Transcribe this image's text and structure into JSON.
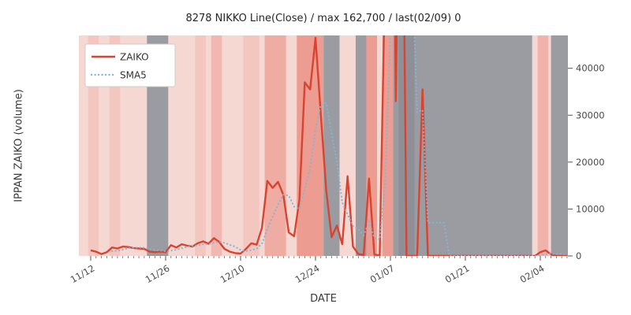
{
  "chart_data": {
    "type": "line",
    "title": "8278 NIKKO Line(Close) / max 162,700 / last(02/09) 0",
    "xlabel": "DATE",
    "ylabel": "IPPAN ZAIKO (volume)",
    "x_tick_labels": [
      "11/12",
      "11/26",
      "12/10",
      "12/24",
      "01/07",
      "01/21",
      "02/04"
    ],
    "x_tick_days": [
      0,
      14,
      28,
      42,
      56,
      70,
      84
    ],
    "y_ticks": [
      0,
      10000,
      20000,
      30000,
      40000
    ],
    "y_tick_labels": [
      "0",
      "10000",
      "20000",
      "30000",
      "40000"
    ],
    "ylim": [
      0,
      47000
    ],
    "grid": false,
    "legend_position": "upper-left",
    "sma_window": 5,
    "legend": [
      {
        "label": "ZAIKO",
        "color": "#d9432f",
        "style": "solid"
      },
      {
        "label": "SMA5",
        "color": "#85b5d4",
        "style": "dotted"
      }
    ],
    "dates": [
      "11/12",
      "11/13",
      "11/14",
      "11/15",
      "11/16",
      "11/17",
      "11/18",
      "11/19",
      "11/20",
      "11/21",
      "11/22",
      "11/23",
      "11/24",
      "11/25",
      "11/26",
      "11/27",
      "11/28",
      "11/29",
      "11/30",
      "12/01",
      "12/02",
      "12/03",
      "12/04",
      "12/05",
      "12/06",
      "12/07",
      "12/08",
      "12/09",
      "12/10",
      "12/11",
      "12/12",
      "12/13",
      "12/14",
      "12/15",
      "12/16",
      "12/17",
      "12/18",
      "12/19",
      "12/20",
      "12/21",
      "12/22",
      "12/23",
      "12/24",
      "12/25",
      "12/26",
      "12/27",
      "12/28",
      "12/29",
      "12/30",
      "12/31",
      "01/01",
      "01/02",
      "01/03",
      "01/04",
      "01/05",
      "01/06",
      "01/07",
      "01/08",
      "01/09",
      "01/10",
      "01/11",
      "01/12",
      "01/13",
      "01/14",
      "01/15",
      "01/16",
      "01/17",
      "01/18",
      "01/19",
      "01/20",
      "01/21",
      "01/22",
      "01/23",
      "01/24",
      "01/25",
      "01/26",
      "01/27",
      "01/28",
      "01/29",
      "01/30",
      "01/31",
      "02/01",
      "02/02",
      "02/03",
      "02/04",
      "02/05",
      "02/06",
      "02/07",
      "02/08",
      "02/09"
    ],
    "zaiko": [
      1200,
      900,
      400,
      800,
      1800,
      1600,
      2000,
      1900,
      1700,
      1600,
      1500,
      900,
      800,
      900,
      800,
      2300,
      1800,
      2500,
      2200,
      2000,
      2700,
      3100,
      2600,
      3800,
      3000,
      1500,
      900,
      600,
      500,
      1500,
      2700,
      2400,
      6000,
      16000,
      14500,
      15800,
      13000,
      5000,
      4200,
      12000,
      37000,
      35500,
      46500,
      30000,
      14000,
      4000,
      6500,
      2500,
      17000,
      2000,
      400,
      200,
      16500,
      300,
      100,
      60000,
      162700,
      33000,
      120000,
      0,
      0,
      0,
      35500,
      0,
      0,
      0,
      0,
      0,
      0,
      0,
      0,
      0,
      0,
      0,
      0,
      0,
      0,
      0,
      0,
      0,
      0,
      0,
      0,
      0,
      800,
      1200,
      300,
      0,
      0,
      0
    ],
    "background_bands": [
      {
        "from": -2.5,
        "to": 10.5,
        "color": "#f6d8d3"
      },
      {
        "from": -0.5,
        "to": 1.5,
        "color": "#f3c6c0"
      },
      {
        "from": 3.5,
        "to": 5.5,
        "color": "#f3c6c0"
      },
      {
        "from": 10.5,
        "to": 14.5,
        "color": "#9b9ba2"
      },
      {
        "from": 14.5,
        "to": 43.5,
        "color": "#f6d8d3"
      },
      {
        "from": 19.5,
        "to": 21.5,
        "color": "#f3c6c0"
      },
      {
        "from": 22.5,
        "to": 24.5,
        "color": "#f0b8b0"
      },
      {
        "from": 28.5,
        "to": 31.5,
        "color": "#f3c6c0"
      },
      {
        "from": 32.5,
        "to": 36.5,
        "color": "#efaca2"
      },
      {
        "from": 38.5,
        "to": 43.5,
        "color": "#ec9c90"
      },
      {
        "from": 43.5,
        "to": 46.5,
        "color": "#9b9ba2"
      },
      {
        "from": 46.5,
        "to": 49.5,
        "color": "#f6d8d3"
      },
      {
        "from": 49.5,
        "to": 51.5,
        "color": "#9b9ba2"
      },
      {
        "from": 51.5,
        "to": 53.5,
        "color": "#ec9c90"
      },
      {
        "from": 53.5,
        "to": 54.5,
        "color": "#f6d8d3"
      },
      {
        "from": 54.5,
        "to": 56.5,
        "color": "#ec9c90"
      },
      {
        "from": 56.5,
        "to": 82.5,
        "color": "#9b9ba2"
      },
      {
        "from": 57.5,
        "to": 60.5,
        "color": "#8f8f97"
      },
      {
        "from": 82.5,
        "to": 86.0,
        "color": "#f6d8d3"
      },
      {
        "from": 83.5,
        "to": 85.5,
        "color": "#f0b2aa"
      },
      {
        "from": 86.0,
        "to": 90.5,
        "color": "#9b9ba2"
      }
    ],
    "colors": {
      "zaiko_line": "#d9432f",
      "sma5_line": "#85b5d4",
      "tick": "#555555",
      "tick_label": "#4a4a4a",
      "legend_border": "#cccccc",
      "legend_bg": "#ffffff"
    }
  }
}
